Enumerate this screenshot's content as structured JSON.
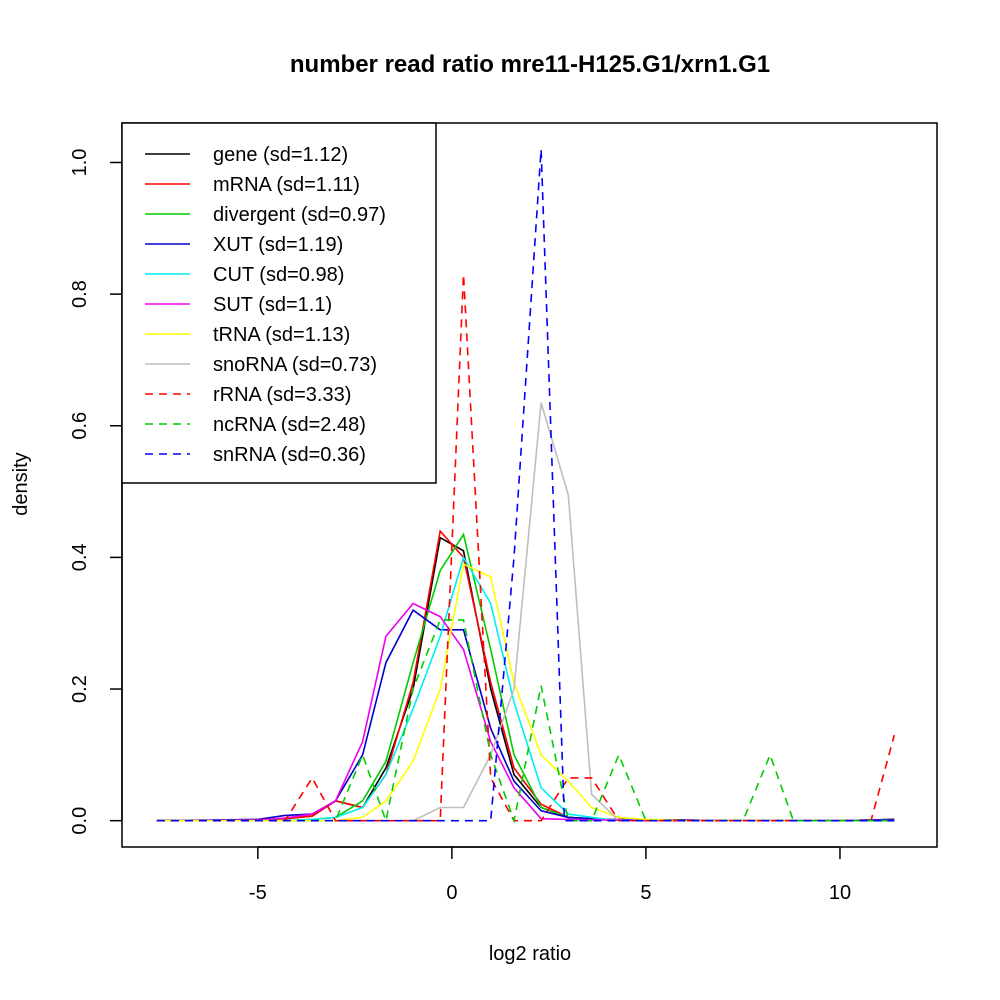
{
  "chart_data": {
    "type": "line",
    "title": "number read ratio mre11-H125.G1/xrn1.G1",
    "xlabel": "log2 ratio",
    "ylabel": "density",
    "xlim": [
      -8.5,
      12.5
    ],
    "ylim": [
      -0.04,
      1.06
    ],
    "xticks": [
      -5,
      0,
      5,
      10
    ],
    "yticks": [
      0.0,
      0.2,
      0.4,
      0.6,
      0.8,
      1.0
    ],
    "xtick_labels": [
      "-5",
      "0",
      "5",
      "10"
    ],
    "ytick_labels": [
      "0.0",
      "0.2",
      "0.4",
      "0.6",
      "0.8",
      "1.0"
    ],
    "legend_position": "top-left",
    "series": [
      {
        "name": "gene (sd=1.12)",
        "color": "#000000",
        "dash": "solid",
        "x": [
          -7.6,
          -5,
          -4.3,
          -3.6,
          -3,
          -2.3,
          -1.7,
          -1,
          -0.3,
          0.3,
          1,
          1.6,
          2.3,
          3,
          4,
          5,
          6,
          7,
          8,
          9,
          10,
          11.4
        ],
        "y": [
          0,
          0.001,
          0.003,
          0.007,
          0.03,
          0.02,
          0.08,
          0.2,
          0.43,
          0.41,
          0.2,
          0.07,
          0.02,
          0.005,
          0.002,
          0.001,
          0.001,
          0,
          0,
          0,
          0,
          0.002
        ]
      },
      {
        "name": "mRNA (sd=1.11)",
        "color": "#ff0000",
        "dash": "solid",
        "x": [
          -7.6,
          -5,
          -4.3,
          -3.6,
          -3,
          -2.3,
          -1.7,
          -1,
          -0.3,
          0.3,
          1,
          1.6,
          2.3,
          3,
          4,
          5,
          6,
          7,
          8,
          9,
          10,
          11.4
        ],
        "y": [
          0,
          0.001,
          0.003,
          0.007,
          0.03,
          0.02,
          0.07,
          0.21,
          0.44,
          0.4,
          0.21,
          0.08,
          0.025,
          0.005,
          0.002,
          0.001,
          0.001,
          0,
          0,
          0,
          0,
          0.002
        ]
      },
      {
        "name": "divergent (sd=0.97)",
        "color": "#00cc00",
        "dash": "solid",
        "x": [
          -7.6,
          -5,
          -4.3,
          -3.6,
          -3,
          -2.3,
          -1.7,
          -1,
          -0.3,
          0.3,
          1,
          1.6,
          2.3,
          3,
          4,
          5,
          6,
          7,
          8,
          9,
          10,
          11.4
        ],
        "y": [
          0,
          0,
          0,
          0.002,
          0.005,
          0.03,
          0.09,
          0.24,
          0.38,
          0.435,
          0.26,
          0.1,
          0.02,
          0.005,
          0.001,
          0,
          0,
          0,
          0,
          0,
          0,
          0
        ]
      },
      {
        "name": "XUT (sd=1.19)",
        "color": "#0000cc",
        "dash": "solid",
        "x": [
          -7.6,
          -5,
          -4.3,
          -3.6,
          -3,
          -2.3,
          -1.7,
          -1,
          -0.3,
          0.3,
          1,
          1.6,
          2.3,
          3,
          4,
          5,
          6,
          7,
          8,
          9,
          10,
          11.4
        ],
        "y": [
          0,
          0.002,
          0.008,
          0.01,
          0.03,
          0.1,
          0.24,
          0.32,
          0.29,
          0.29,
          0.14,
          0.06,
          0.015,
          0.005,
          0.002,
          0.001,
          0.001,
          0,
          0,
          0,
          0,
          0.002
        ]
      },
      {
        "name": "CUT (sd=0.98)",
        "color": "#00eeee",
        "dash": "solid",
        "x": [
          -7.6,
          -5,
          -4.3,
          -3.6,
          -3,
          -2.3,
          -1.7,
          -1,
          -0.3,
          0.3,
          1,
          1.6,
          2.3,
          3,
          4,
          5,
          6,
          7,
          8,
          9,
          10,
          11.4
        ],
        "y": [
          0,
          0,
          0,
          0.002,
          0.005,
          0.02,
          0.07,
          0.17,
          0.28,
          0.4,
          0.33,
          0.18,
          0.05,
          0.01,
          0.002,
          0,
          0,
          0,
          0,
          0,
          0,
          0
        ]
      },
      {
        "name": "SUT (sd=1.1)",
        "color": "#ee00ee",
        "dash": "solid",
        "x": [
          -7.6,
          -5,
          -4.3,
          -3.6,
          -3,
          -2.3,
          -1.7,
          -1,
          -0.3,
          0.3,
          1,
          1.6,
          2.3,
          3,
          4,
          5,
          6,
          7,
          8,
          9,
          10,
          11.4
        ],
        "y": [
          0,
          0.001,
          0.004,
          0.01,
          0.03,
          0.12,
          0.28,
          0.33,
          0.31,
          0.26,
          0.12,
          0.05,
          0.003,
          0.002,
          0.001,
          0,
          0,
          0,
          0,
          0,
          0,
          0
        ]
      },
      {
        "name": "tRNA (sd=1.13)",
        "color": "#ffff00",
        "dash": "solid",
        "x": [
          -7.6,
          -5,
          -4.3,
          -3.6,
          -3,
          -2.3,
          -1.7,
          -1,
          -0.3,
          0.3,
          1,
          1.6,
          2.3,
          3,
          3.6,
          4.3,
          5,
          6,
          7,
          8,
          9,
          10,
          11.4
        ],
        "y": [
          0,
          0,
          0,
          0,
          0,
          0.005,
          0.03,
          0.09,
          0.2,
          0.39,
          0.37,
          0.21,
          0.1,
          0.06,
          0.02,
          0.005,
          0.002,
          0,
          0,
          0,
          0,
          0,
          0
        ]
      },
      {
        "name": "snoRNA (sd=0.73)",
        "color": "#bebebe",
        "dash": "solid",
        "x": [
          -1,
          -0.3,
          0.3,
          1,
          1.6,
          2.3,
          3,
          3.6,
          4.3
        ],
        "y": [
          0,
          0.02,
          0.02,
          0.1,
          0.2,
          0.635,
          0.495,
          0.04,
          0
        ]
      },
      {
        "name": "rRNA (sd=3.33)",
        "color": "#ff0000",
        "dash": "dashed",
        "x": [
          -7.6,
          -4.3,
          -3.6,
          -3,
          -2.3,
          -1.7,
          -1,
          -0.3,
          0.3,
          1,
          1.6,
          2.3,
          3,
          3.6,
          4.3,
          5,
          6,
          7,
          8,
          9,
          10,
          10.8,
          11.4
        ],
        "y": [
          0,
          0,
          0.065,
          0,
          0,
          0,
          0,
          0,
          0.83,
          0.065,
          0,
          0,
          0.065,
          0.065,
          0,
          0,
          0,
          0,
          0,
          0,
          0,
          0,
          0.13
        ]
      },
      {
        "name": "ncRNA (sd=2.48)",
        "color": "#00cc00",
        "dash": "dashed",
        "x": [
          -7.6,
          -3,
          -2.3,
          -1.7,
          -1,
          -0.3,
          0.3,
          1,
          1.6,
          2.3,
          3,
          3.6,
          4.3,
          5,
          6,
          7,
          7.5,
          8.2,
          8.8,
          10,
          11.4
        ],
        "y": [
          0,
          0,
          0.1,
          0,
          0.2,
          0.305,
          0.305,
          0.1,
          0,
          0.205,
          0,
          0,
          0.1,
          0,
          0,
          0,
          0,
          0.1,
          0,
          0,
          0
        ]
      },
      {
        "name": "snRNA (sd=0.36)",
        "color": "#0000ff",
        "dash": "dashed",
        "x": [
          -7.6,
          1,
          1.6,
          2.3,
          2.9,
          3.6,
          5,
          11.4
        ],
        "y": [
          0,
          0,
          0.4,
          1.02,
          0,
          0,
          0,
          0
        ]
      }
    ]
  }
}
